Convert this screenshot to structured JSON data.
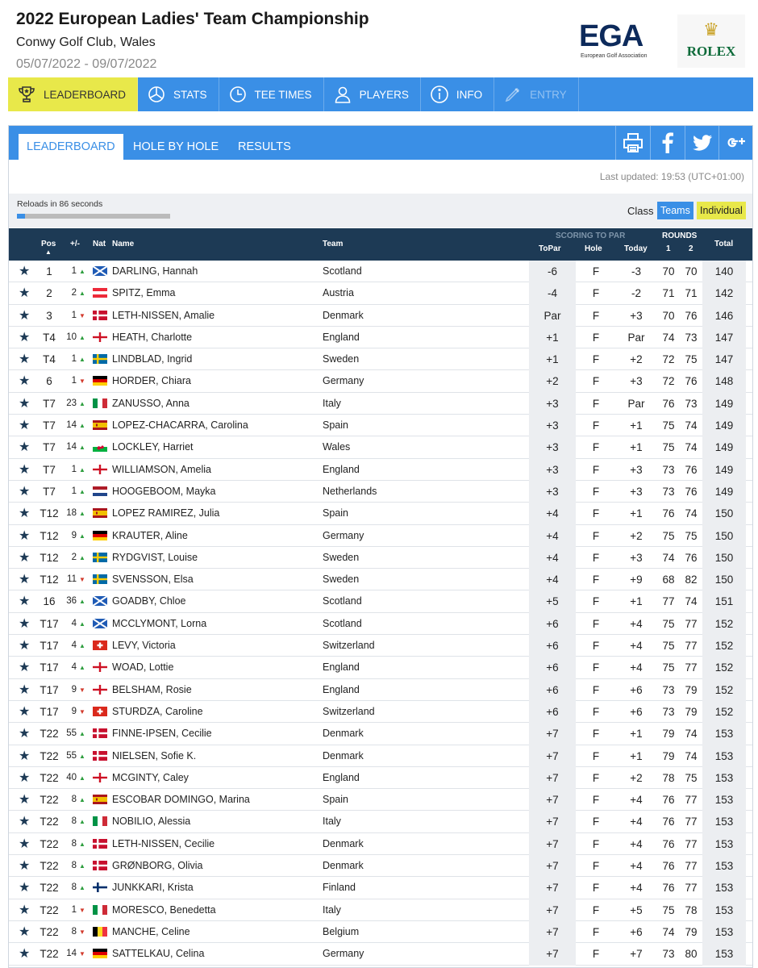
{
  "event": {
    "title": "2022 European Ladies' Team Championship",
    "venue": "Conwy Golf Club, Wales",
    "dates": "05/07/2022 - 09/07/2022"
  },
  "logos": {
    "ega_word": "EGA",
    "ega_sub": "European Golf Association",
    "rolex_word": "ROLEX",
    "rolex_crown": "♛"
  },
  "colors": {
    "accent": "#3a8fe6",
    "highlight": "#e8e84a",
    "header_dark": "#1d3a55",
    "up": "#2e9e3f",
    "down": "#d23a2c"
  },
  "nav": [
    {
      "label": "LEADERBOARD",
      "icon": "trophy-icon",
      "state": "active"
    },
    {
      "label": "STATS",
      "icon": "pie-chart-icon",
      "state": "normal"
    },
    {
      "label": "TEE TIMES",
      "icon": "clock-icon",
      "state": "normal"
    },
    {
      "label": "PLAYERS",
      "icon": "person-icon",
      "state": "normal"
    },
    {
      "label": "INFO",
      "icon": "info-icon",
      "state": "normal"
    },
    {
      "label": "ENTRY",
      "icon": "pen-icon",
      "state": "disabled"
    }
  ],
  "tabs": [
    {
      "label": "LEADERBOARD",
      "active": true
    },
    {
      "label": "HOLE BY HOLE",
      "active": false
    },
    {
      "label": "RESULTS",
      "active": false
    }
  ],
  "share_icons": [
    "print-icon",
    "facebook-icon",
    "twitter-icon",
    "google-plus-icon"
  ],
  "status": {
    "last_updated": "Last updated: 19:53 (UTC+01:00)",
    "reload_text": "Reloads in 86 seconds",
    "reload_progress": 0.05,
    "class_label": "Class",
    "teams_label": "Teams",
    "individual_label": "Individual"
  },
  "table_header": {
    "pos": "Pos",
    "change": "+/-",
    "nat": "Nat",
    "name": "Name",
    "team": "Team",
    "scoring_group": "SCORING TO PAR",
    "topar": "ToPar",
    "hole": "Hole",
    "today": "Today",
    "rounds_group": "ROUNDS",
    "r1": "1",
    "r2": "2",
    "total": "Total",
    "sort_indicator": "▲"
  },
  "rows": [
    {
      "pos": "1",
      "chg": "1",
      "dir": "up",
      "nat": "SCO",
      "name": "DARLING, Hannah",
      "team": "Scotland",
      "topar": "-6",
      "hole": "F",
      "today": "-3",
      "r1": "70",
      "r2": "70",
      "total": "140"
    },
    {
      "pos": "2",
      "chg": "2",
      "dir": "up",
      "nat": "AUT",
      "name": "SPITZ, Emma",
      "team": "Austria",
      "topar": "-4",
      "hole": "F",
      "today": "-2",
      "r1": "71",
      "r2": "71",
      "total": "142"
    },
    {
      "pos": "3",
      "chg": "1",
      "dir": "down",
      "nat": "DEN",
      "name": "LETH-NISSEN, Amalie",
      "team": "Denmark",
      "topar": "Par",
      "hole": "F",
      "today": "+3",
      "r1": "70",
      "r2": "76",
      "total": "146"
    },
    {
      "pos": "T4",
      "chg": "10",
      "dir": "up",
      "nat": "ENG",
      "name": "HEATH, Charlotte",
      "team": "England",
      "topar": "+1",
      "hole": "F",
      "today": "Par",
      "r1": "74",
      "r2": "73",
      "total": "147"
    },
    {
      "pos": "T4",
      "chg": "1",
      "dir": "up",
      "nat": "SWE",
      "name": "LINDBLAD, Ingrid",
      "team": "Sweden",
      "topar": "+1",
      "hole": "F",
      "today": "+2",
      "r1": "72",
      "r2": "75",
      "total": "147"
    },
    {
      "pos": "6",
      "chg": "1",
      "dir": "down",
      "nat": "GER",
      "name": "HORDER, Chiara",
      "team": "Germany",
      "topar": "+2",
      "hole": "F",
      "today": "+3",
      "r1": "72",
      "r2": "76",
      "total": "148"
    },
    {
      "pos": "T7",
      "chg": "23",
      "dir": "up",
      "nat": "ITA",
      "name": "ZANUSSO, Anna",
      "team": "Italy",
      "topar": "+3",
      "hole": "F",
      "today": "Par",
      "r1": "76",
      "r2": "73",
      "total": "149"
    },
    {
      "pos": "T7",
      "chg": "14",
      "dir": "up",
      "nat": "ESP",
      "name": "LOPEZ-CHACARRA, Carolina",
      "team": "Spain",
      "topar": "+3",
      "hole": "F",
      "today": "+1",
      "r1": "75",
      "r2": "74",
      "total": "149"
    },
    {
      "pos": "T7",
      "chg": "14",
      "dir": "up",
      "nat": "WAL",
      "name": "LOCKLEY, Harriet",
      "team": "Wales",
      "topar": "+3",
      "hole": "F",
      "today": "+1",
      "r1": "75",
      "r2": "74",
      "total": "149"
    },
    {
      "pos": "T7",
      "chg": "1",
      "dir": "up",
      "nat": "ENG",
      "name": "WILLIAMSON, Amelia",
      "team": "England",
      "topar": "+3",
      "hole": "F",
      "today": "+3",
      "r1": "73",
      "r2": "76",
      "total": "149"
    },
    {
      "pos": "T7",
      "chg": "1",
      "dir": "up",
      "nat": "NED",
      "name": "HOOGEBOOM, Mayka",
      "team": "Netherlands",
      "topar": "+3",
      "hole": "F",
      "today": "+3",
      "r1": "73",
      "r2": "76",
      "total": "149"
    },
    {
      "pos": "T12",
      "chg": "18",
      "dir": "up",
      "nat": "ESP",
      "name": "LOPEZ RAMIREZ, Julia",
      "team": "Spain",
      "topar": "+4",
      "hole": "F",
      "today": "+1",
      "r1": "76",
      "r2": "74",
      "total": "150"
    },
    {
      "pos": "T12",
      "chg": "9",
      "dir": "up",
      "nat": "GER",
      "name": "KRAUTER, Aline",
      "team": "Germany",
      "topar": "+4",
      "hole": "F",
      "today": "+2",
      "r1": "75",
      "r2": "75",
      "total": "150"
    },
    {
      "pos": "T12",
      "chg": "2",
      "dir": "up",
      "nat": "SWE",
      "name": "RYDGVIST, Louise",
      "team": "Sweden",
      "topar": "+4",
      "hole": "F",
      "today": "+3",
      "r1": "74",
      "r2": "76",
      "total": "150"
    },
    {
      "pos": "T12",
      "chg": "11",
      "dir": "down",
      "nat": "SWE",
      "name": "SVENSSON, Elsa",
      "team": "Sweden",
      "topar": "+4",
      "hole": "F",
      "today": "+9",
      "r1": "68",
      "r2": "82",
      "total": "150"
    },
    {
      "pos": "16",
      "chg": "36",
      "dir": "up",
      "nat": "SCO",
      "name": "GOADBY, Chloe",
      "team": "Scotland",
      "topar": "+5",
      "hole": "F",
      "today": "+1",
      "r1": "77",
      "r2": "74",
      "total": "151"
    },
    {
      "pos": "T17",
      "chg": "4",
      "dir": "up",
      "nat": "SCO",
      "name": "MCCLYMONT, Lorna",
      "team": "Scotland",
      "topar": "+6",
      "hole": "F",
      "today": "+4",
      "r1": "75",
      "r2": "77",
      "total": "152"
    },
    {
      "pos": "T17",
      "chg": "4",
      "dir": "up",
      "nat": "SUI",
      "name": "LEVY, Victoria",
      "team": "Switzerland",
      "topar": "+6",
      "hole": "F",
      "today": "+4",
      "r1": "75",
      "r2": "77",
      "total": "152"
    },
    {
      "pos": "T17",
      "chg": "4",
      "dir": "up",
      "nat": "ENG",
      "name": "WOAD, Lottie",
      "team": "England",
      "topar": "+6",
      "hole": "F",
      "today": "+4",
      "r1": "75",
      "r2": "77",
      "total": "152"
    },
    {
      "pos": "T17",
      "chg": "9",
      "dir": "down",
      "nat": "ENG",
      "name": "BELSHAM, Rosie",
      "team": "England",
      "topar": "+6",
      "hole": "F",
      "today": "+6",
      "r1": "73",
      "r2": "79",
      "total": "152"
    },
    {
      "pos": "T17",
      "chg": "9",
      "dir": "down",
      "nat": "SUI",
      "name": "STURDZA, Caroline",
      "team": "Switzerland",
      "topar": "+6",
      "hole": "F",
      "today": "+6",
      "r1": "73",
      "r2": "79",
      "total": "152"
    },
    {
      "pos": "T22",
      "chg": "55",
      "dir": "up",
      "nat": "DEN",
      "name": "FINNE-IPSEN, Cecilie",
      "team": "Denmark",
      "topar": "+7",
      "hole": "F",
      "today": "+1",
      "r1": "79",
      "r2": "74",
      "total": "153"
    },
    {
      "pos": "T22",
      "chg": "55",
      "dir": "up",
      "nat": "DEN",
      "name": "NIELSEN, Sofie K.",
      "team": "Denmark",
      "topar": "+7",
      "hole": "F",
      "today": "+1",
      "r1": "79",
      "r2": "74",
      "total": "153"
    },
    {
      "pos": "T22",
      "chg": "40",
      "dir": "up",
      "nat": "ENG",
      "name": "MCGINTY, Caley",
      "team": "England",
      "topar": "+7",
      "hole": "F",
      "today": "+2",
      "r1": "78",
      "r2": "75",
      "total": "153"
    },
    {
      "pos": "T22",
      "chg": "8",
      "dir": "up",
      "nat": "ESP",
      "name": "ESCOBAR DOMINGO, Marina",
      "team": "Spain",
      "topar": "+7",
      "hole": "F",
      "today": "+4",
      "r1": "76",
      "r2": "77",
      "total": "153"
    },
    {
      "pos": "T22",
      "chg": "8",
      "dir": "up",
      "nat": "ITA",
      "name": "NOBILIO, Alessia",
      "team": "Italy",
      "topar": "+7",
      "hole": "F",
      "today": "+4",
      "r1": "76",
      "r2": "77",
      "total": "153"
    },
    {
      "pos": "T22",
      "chg": "8",
      "dir": "up",
      "nat": "DEN",
      "name": "LETH-NISSEN, Cecilie",
      "team": "Denmark",
      "topar": "+7",
      "hole": "F",
      "today": "+4",
      "r1": "76",
      "r2": "77",
      "total": "153"
    },
    {
      "pos": "T22",
      "chg": "8",
      "dir": "up",
      "nat": "DEN",
      "name": "GRØNBORG, Olivia",
      "team": "Denmark",
      "topar": "+7",
      "hole": "F",
      "today": "+4",
      "r1": "76",
      "r2": "77",
      "total": "153"
    },
    {
      "pos": "T22",
      "chg": "8",
      "dir": "up",
      "nat": "FIN",
      "name": "JUNKKARI, Krista",
      "team": "Finland",
      "topar": "+7",
      "hole": "F",
      "today": "+4",
      "r1": "76",
      "r2": "77",
      "total": "153"
    },
    {
      "pos": "T22",
      "chg": "1",
      "dir": "down",
      "nat": "ITA",
      "name": "MORESCO, Benedetta",
      "team": "Italy",
      "topar": "+7",
      "hole": "F",
      "today": "+5",
      "r1": "75",
      "r2": "78",
      "total": "153"
    },
    {
      "pos": "T22",
      "chg": "8",
      "dir": "down",
      "nat": "BEL",
      "name": "MANCHE, Celine",
      "team": "Belgium",
      "topar": "+7",
      "hole": "F",
      "today": "+6",
      "r1": "74",
      "r2": "79",
      "total": "153"
    },
    {
      "pos": "T22",
      "chg": "14",
      "dir": "down",
      "nat": "GER",
      "name": "SATTELKAU, Celina",
      "team": "Germany",
      "topar": "+7",
      "hole": "F",
      "today": "+7",
      "r1": "73",
      "r2": "80",
      "total": "153"
    }
  ]
}
